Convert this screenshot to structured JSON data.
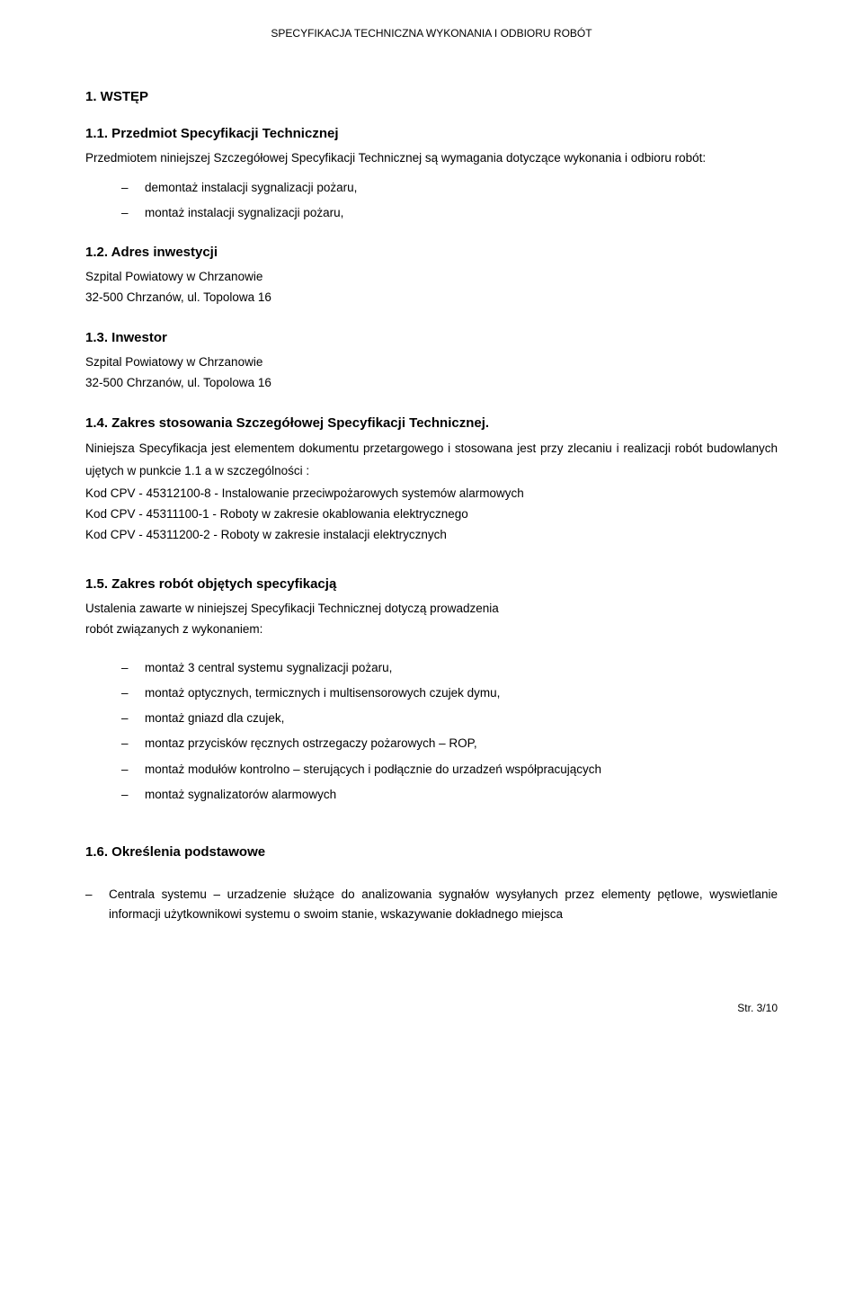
{
  "page": {
    "header": "SPECYFIKACJA TECHNICZNA WYKONANIA I ODBIORU ROBÓT",
    "footer": "Str. 3/10"
  },
  "s1": {
    "title": "1. WSTĘP",
    "s11": {
      "title": "1.1. Przedmiot Specyfikacji Technicznej",
      "intro": "Przedmiotem niniejszej Szczegółowej Specyfikacji Technicznej są wymagania dotyczące wykonania i odbioru robót:",
      "items": [
        "demontaż instalacji sygnalizacji pożaru,",
        "montaż instalacji sygnalizacji pożaru,"
      ]
    },
    "s12": {
      "title": "1.2. Adres inwestycji",
      "l1": "Szpital Powiatowy w Chrzanowie",
      "l2": "32-500 Chrzanów, ul. Topolowa 16"
    },
    "s13": {
      "title": "1.3. Inwestor",
      "l1": "Szpital Powiatowy w Chrzanowie",
      "l2": "32-500 Chrzanów, ul. Topolowa 16"
    },
    "s14": {
      "title": "1.4. Zakres stosowania Szczegółowej Specyfikacji Technicznej.",
      "p1": "Niniejsza Specyfikacja jest elementem dokumentu przetargowego i stosowana jest przy zlecaniu i realizacji robót budowlanych ujętych w punkcie 1.1 a w szczególności :",
      "c1": "Kod CPV - 45312100-8 - Instalowanie przeciwpożarowych systemów alarmowych",
      "c2": "Kod CPV - 45311100-1 - Roboty w zakresie okablowania elektrycznego",
      "c3": "Kod CPV - 45311200-2 - Roboty w zakresie instalacji elektrycznych"
    },
    "s15": {
      "title": "1.5. Zakres robót objętych specyfikacją",
      "p1": "Ustalenia zawarte w niniejszej Specyfikacji Technicznej dotyczą prowadzenia",
      "p2": "robót związanych z wykonaniem:",
      "items": [
        "montaż 3 central systemu sygnalizacji pożaru,",
        "montaż optycznych, termicznych i multisensorowych czujek dymu,",
        "montaż gniazd dla czujek,",
        "montaz przycisków ręcznych ostrzegaczy pożarowych – ROP,",
        "montaż modułów kontrolno – sterujących i podłącznie do urzadzeń współpracujących",
        "montaż sygnalizatorów alarmowych"
      ]
    },
    "s16": {
      "title": "1.6. Określenia podstawowe",
      "items": [
        "Centrala systemu – urzadzenie służące do analizowania sygnałów wysyłanych przez elementy pętlowe, wyswietlanie informacji użytkownikowi systemu o swoim stanie, wskazywanie dokładnego miejsca"
      ]
    }
  }
}
